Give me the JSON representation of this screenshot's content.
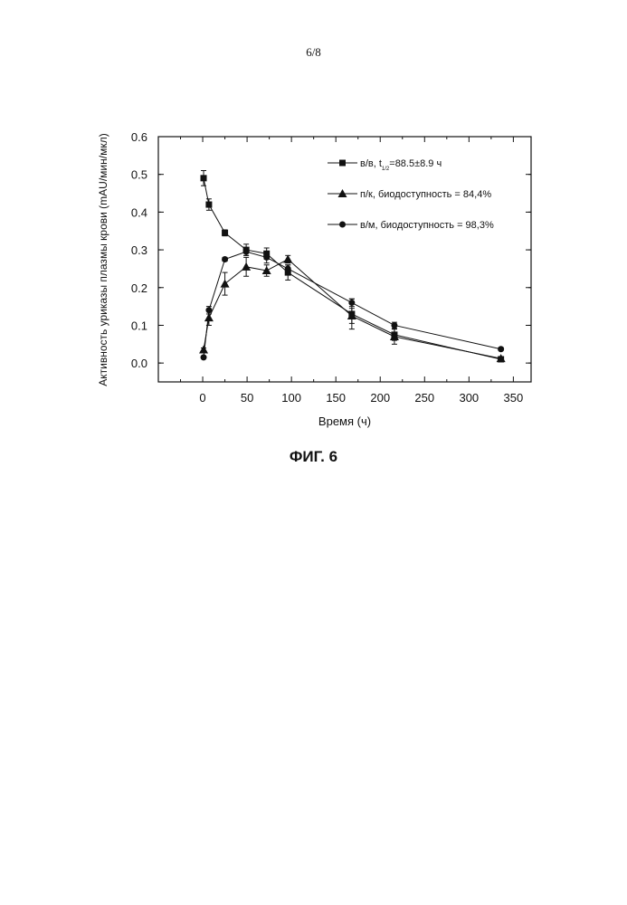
{
  "page_number": "6/8",
  "figure_caption": "ФИГ. 6",
  "colors": {
    "ink": "#111111"
  },
  "chart_data": {
    "type": "line",
    "xlabel": "Время (ч)",
    "ylabel": "Активность уриказы плазмы крови (mAU/мин/мкл)",
    "xlim": [
      -50,
      370
    ],
    "ylim": [
      -0.05,
      0.6
    ],
    "xticks": [
      0,
      50,
      100,
      150,
      200,
      250,
      300,
      350
    ],
    "yticks": [
      0.0,
      0.1,
      0.2,
      0.3,
      0.4,
      0.5,
      0.6
    ],
    "xtick_labels": [
      "0",
      "50",
      "100",
      "150",
      "200",
      "250",
      "300",
      "350"
    ],
    "ytick_labels": [
      "0.0",
      "0.1",
      "0.2",
      "0.3",
      "0.4",
      "0.5",
      "0.6"
    ],
    "grid": false,
    "legend_position": "top-right",
    "series": [
      {
        "name": "в/в, t",
        "name_sub": "1/2",
        "name_rest": "=88.5±8.9 ч",
        "marker": "square",
        "x": [
          1,
          7,
          25,
          49,
          72,
          96,
          168,
          216,
          336
        ],
        "y": [
          0.49,
          0.42,
          0.345,
          0.3,
          0.29,
          0.24,
          0.13,
          0.075,
          0.01
        ],
        "err": [
          0.02,
          0.015,
          0.008,
          0.015,
          0.015,
          0.02,
          0.04,
          0.015,
          0.005
        ]
      },
      {
        "name": "п/к, биодоступность = 84,4%",
        "marker": "triangle",
        "x": [
          1,
          7,
          25,
          49,
          72,
          96,
          168,
          216,
          336
        ],
        "y": [
          0.035,
          0.12,
          0.21,
          0.255,
          0.245,
          0.275,
          0.125,
          0.07,
          0.012
        ],
        "err": [
          0.005,
          0.02,
          0.03,
          0.025,
          0.015,
          0.01,
          0.02,
          0.02,
          0.005
        ]
      },
      {
        "name": "в/м, биодоступность = 98,3%",
        "marker": "circle",
        "x": [
          1,
          7,
          25,
          49,
          72,
          96,
          168,
          216,
          336
        ],
        "y": [
          0.015,
          0.14,
          0.275,
          0.295,
          0.28,
          0.25,
          0.16,
          0.1,
          0.037
        ],
        "err": [
          0.003,
          0.01,
          0.005,
          0.01,
          0.015,
          0.01,
          0.01,
          0.008,
          0.004
        ]
      }
    ]
  }
}
